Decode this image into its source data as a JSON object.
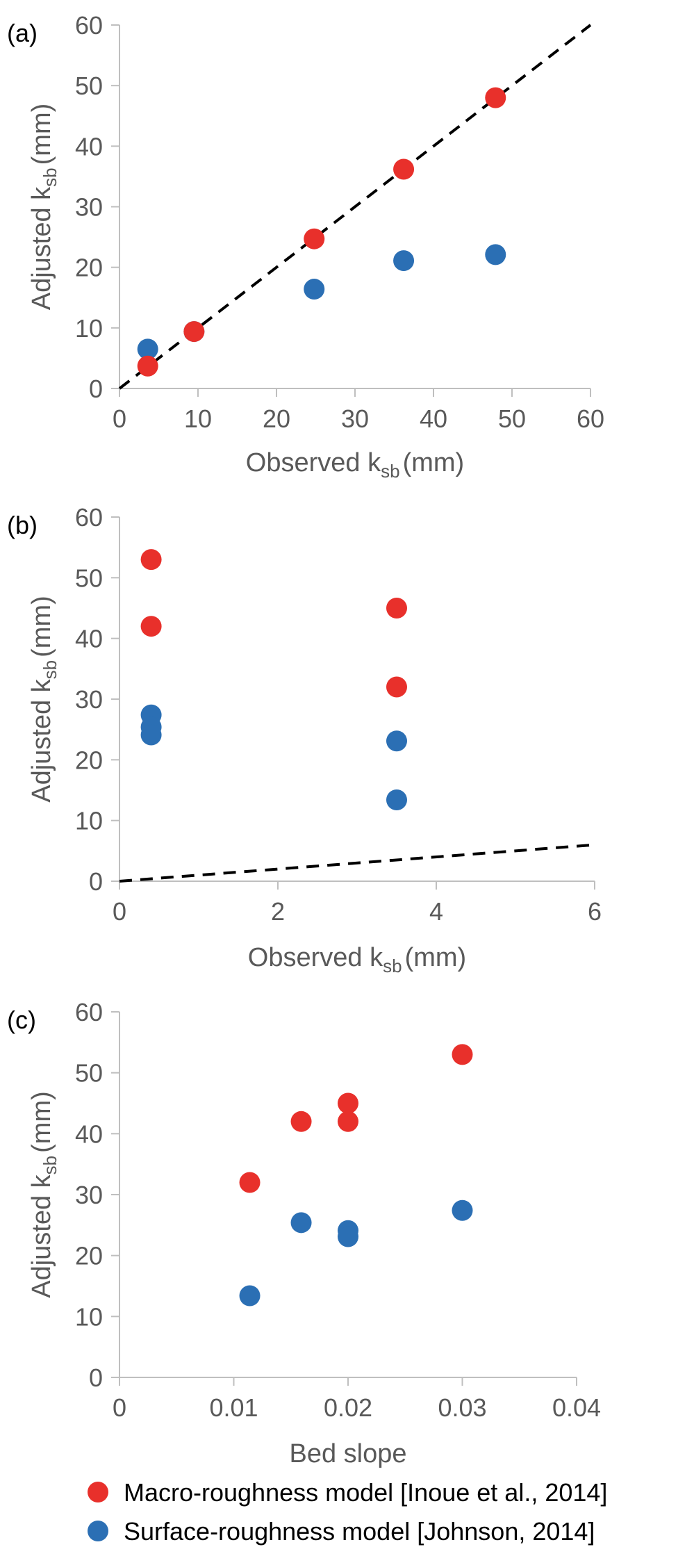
{
  "colors": {
    "macro": "#e8302b",
    "surface": "#2b6fb4",
    "axis": "#bfbfbf",
    "text": "#595959",
    "one_to_one": "#000000"
  },
  "legend": [
    {
      "label": "Macro-roughness model [Inoue et al., 2014]",
      "color": "#e8302b"
    },
    {
      "label": "Surface-roughness model [Johnson, 2014]",
      "color": "#2b6fb4"
    }
  ],
  "chart_data": [
    {
      "panel": "(a)",
      "type": "scatter",
      "xlabel_main": "Observed k",
      "xlabel_sub": "sb",
      "xlabel_unit": "(mm)",
      "ylabel_main": "Adjusted k",
      "ylabel_sub": "sb",
      "ylabel_unit": "(mm)",
      "xlim": [
        0,
        60
      ],
      "ylim": [
        0,
        60
      ],
      "xticks": [
        0,
        10,
        20,
        30,
        40,
        50,
        60
      ],
      "xtick_labels": [
        "0",
        "10",
        "20",
        "30",
        "40",
        "50",
        "60"
      ],
      "yticks": [
        0,
        10,
        20,
        30,
        40,
        50,
        60
      ],
      "ytick_labels": [
        "0",
        "10",
        "20",
        "30",
        "40",
        "50",
        "60"
      ],
      "reference_line": {
        "style": "dashed",
        "from": [
          0,
          0
        ],
        "to": [
          60,
          60
        ]
      },
      "series": [
        {
          "key": "surface",
          "x": [
            3.6,
            9.5,
            24.8,
            36.2,
            47.9
          ],
          "y": [
            6.5,
            9.4,
            16.4,
            21.1,
            22.1
          ]
        },
        {
          "key": "macro",
          "x": [
            3.6,
            9.5,
            24.8,
            36.2,
            47.9
          ],
          "y": [
            3.7,
            9.4,
            24.7,
            36.2,
            48.0
          ]
        }
      ]
    },
    {
      "panel": "(b)",
      "type": "scatter",
      "xlabel_main": "Observed k",
      "xlabel_sub": "sb",
      "xlabel_unit": "(mm)",
      "ylabel_main": "Adjusted k",
      "ylabel_sub": "sb",
      "ylabel_unit": "(mm)",
      "xlim": [
        0,
        6
      ],
      "ylim": [
        0,
        60
      ],
      "xticks": [
        0,
        2,
        4,
        6
      ],
      "xtick_labels": [
        "0",
        "2",
        "4",
        "6"
      ],
      "yticks": [
        0,
        10,
        20,
        30,
        40,
        50,
        60
      ],
      "ytick_labels": [
        "0",
        "10",
        "20",
        "30",
        "40",
        "50",
        "60"
      ],
      "reference_line": {
        "style": "dashed",
        "from": [
          0,
          0
        ],
        "to": [
          6,
          6
        ]
      },
      "series": [
        {
          "key": "macro",
          "x": [
            0.4,
            0.4,
            3.5,
            3.5
          ],
          "y": [
            53,
            42,
            45,
            32
          ]
        },
        {
          "key": "surface",
          "x": [
            0.4,
            0.4,
            0.4,
            3.5,
            3.5
          ],
          "y": [
            27.4,
            25.4,
            24.1,
            23.1,
            13.4
          ]
        }
      ]
    },
    {
      "panel": "(c)",
      "type": "scatter",
      "xlabel_main": "Bed slope",
      "xlabel_sub": "",
      "xlabel_unit": "",
      "ylabel_main": "Adjusted k",
      "ylabel_sub": "sb",
      "ylabel_unit": "(mm)",
      "xlim": [
        0,
        0.04
      ],
      "ylim": [
        0,
        60
      ],
      "xticks": [
        0,
        0.01,
        0.02,
        0.03,
        0.04
      ],
      "xtick_labels": [
        "0",
        "0.01",
        "0.02",
        "0.03",
        "0.04"
      ],
      "yticks": [
        0,
        10,
        20,
        30,
        40,
        50,
        60
      ],
      "ytick_labels": [
        "0",
        "10",
        "20",
        "30",
        "40",
        "50",
        "60"
      ],
      "reference_line": null,
      "series": [
        {
          "key": "macro",
          "x": [
            0.0114,
            0.0159,
            0.02,
            0.02,
            0.03
          ],
          "y": [
            32,
            42,
            45,
            42,
            53
          ]
        },
        {
          "key": "surface",
          "x": [
            0.0114,
            0.0159,
            0.02,
            0.02,
            0.03
          ],
          "y": [
            13.4,
            25.4,
            24.1,
            23.1,
            27.4
          ]
        }
      ]
    }
  ]
}
